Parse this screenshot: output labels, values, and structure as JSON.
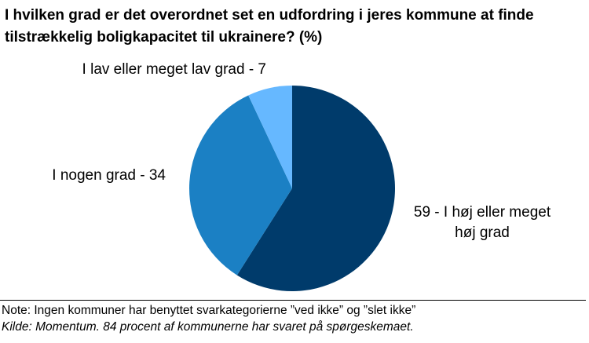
{
  "chart_data": {
    "type": "pie",
    "title": "I hvilken grad er det overordnet set en udfordring i jeres kommune at finde tilstrækkelig boligkapacitet til ukrainere? (%)",
    "slices": [
      {
        "label_lines": [
          "59 - I høj eller meget",
          "høj grad"
        ],
        "value": 59,
        "color": "#003b6b"
      },
      {
        "label_lines": [
          "I nogen grad - 34"
        ],
        "value": 34,
        "color": "#1b80c4"
      },
      {
        "label_lines": [
          "I lav eller meget lav grad - 7"
        ],
        "value": 7,
        "color": "#66b8ff"
      }
    ],
    "note": "Note: Ingen kommuner har benyttet svarkategorierne ”ved ikke” og ”slet ikke”",
    "source": "Kilde: Momentum. 84 procent af kommunerne har svaret på spørgeskemaet."
  }
}
